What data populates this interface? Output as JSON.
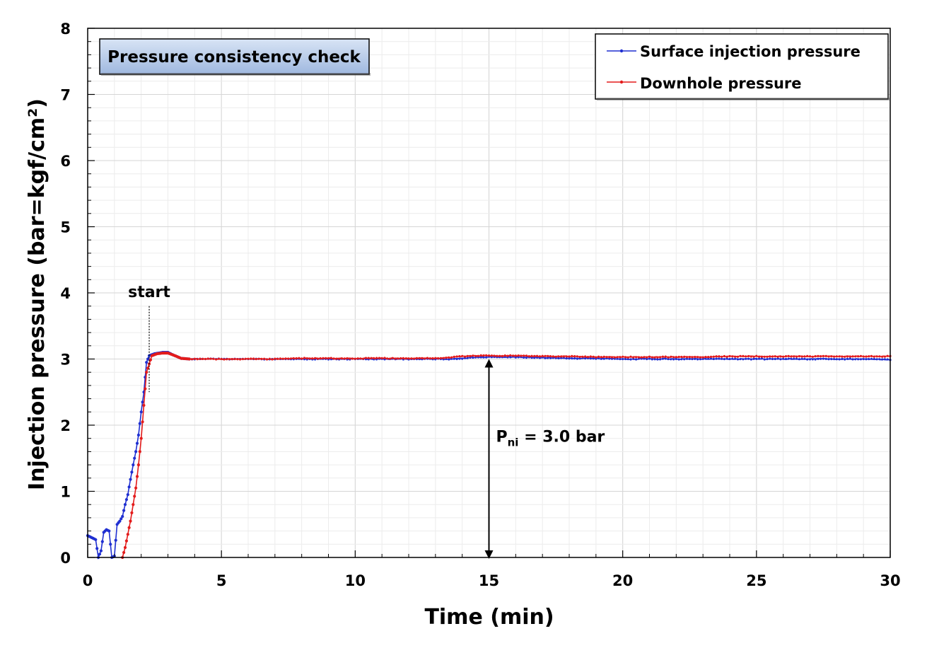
{
  "chart_data": {
    "type": "line",
    "title": "Pressure consistency check",
    "xlabel": "Time (min)",
    "ylabel": "Injection pressure (bar=kgf/cm²)",
    "xlim": [
      0,
      30
    ],
    "ylim": [
      0,
      8
    ],
    "x_ticks": [
      0,
      5,
      10,
      15,
      20,
      25,
      30
    ],
    "y_ticks": [
      0,
      1,
      2,
      3,
      4,
      5,
      6,
      7,
      8
    ],
    "grid": true,
    "legend_position": "top-right",
    "series": [
      {
        "name": "Surface injection pressure",
        "color": "#1f2fd1",
        "x": [
          0,
          0.15,
          0.3,
          0.4,
          0.5,
          0.6,
          0.7,
          0.8,
          0.9,
          1.0,
          1.1,
          1.2,
          1.3,
          1.4,
          1.5,
          1.6,
          1.7,
          1.8,
          1.9,
          2.0,
          2.1,
          2.2,
          2.3,
          2.5,
          2.8,
          3.0,
          3.2,
          3.5,
          3.8,
          4.0,
          5,
          6,
          7,
          8,
          9,
          10,
          11,
          12,
          13,
          13.5,
          14,
          14.5,
          15,
          16,
          17,
          18,
          19,
          20,
          21,
          22,
          23,
          24,
          25,
          26,
          27,
          28,
          29,
          30
        ],
        "y": [
          0.33,
          0.3,
          0.27,
          0.0,
          0.1,
          0.38,
          0.42,
          0.4,
          0.0,
          0.02,
          0.5,
          0.55,
          0.62,
          0.8,
          0.95,
          1.18,
          1.4,
          1.6,
          1.85,
          2.2,
          2.5,
          2.95,
          3.05,
          3.08,
          3.1,
          3.1,
          3.06,
          3.01,
          3.0,
          3.0,
          3.0,
          3.0,
          3.0,
          3.0,
          3.0,
          3.0,
          3.0,
          3.0,
          3.0,
          3.0,
          3.01,
          3.03,
          3.03,
          3.03,
          3.02,
          3.01,
          3.01,
          3.0,
          3.0,
          3.0,
          3.0,
          3.0,
          3.0,
          3.0,
          3.0,
          3.0,
          3.0,
          2.99
        ]
      },
      {
        "name": "Downhole pressure",
        "color": "#e31b1b",
        "x": [
          1.3,
          1.4,
          1.5,
          1.6,
          1.7,
          1.8,
          1.9,
          2.0,
          2.1,
          2.2,
          2.4,
          2.6,
          2.8,
          3.0,
          3.2,
          3.5,
          3.8,
          4.0,
          5,
          6,
          7,
          8,
          9,
          10,
          11,
          12,
          13,
          13.5,
          14,
          14.5,
          15,
          16,
          17,
          18,
          19,
          20,
          21,
          22,
          23,
          24,
          25,
          26,
          27,
          28,
          29,
          30
        ],
        "y": [
          0.0,
          0.15,
          0.35,
          0.55,
          0.8,
          1.05,
          1.4,
          1.8,
          2.3,
          2.8,
          3.05,
          3.08,
          3.09,
          3.09,
          3.06,
          3.01,
          3.0,
          3.0,
          3.0,
          3.0,
          3.0,
          3.01,
          3.01,
          3.01,
          3.01,
          3.01,
          3.01,
          3.02,
          3.04,
          3.05,
          3.05,
          3.05,
          3.04,
          3.04,
          3.03,
          3.03,
          3.03,
          3.03,
          3.03,
          3.04,
          3.04,
          3.04,
          3.04,
          3.04,
          3.04,
          3.04
        ]
      }
    ],
    "annotations": {
      "start_label": "start",
      "start_x": 2.3,
      "arrow_x": 15,
      "arrow_y_from": 0,
      "arrow_y_to": 3.0,
      "pressure_label_p": "P",
      "pressure_label_sub": "ni",
      "pressure_label_rest": " =  3.0 bar"
    }
  },
  "colors": {
    "title_box_top": "#d8e4f5",
    "title_box_bottom": "#9fb8df"
  }
}
